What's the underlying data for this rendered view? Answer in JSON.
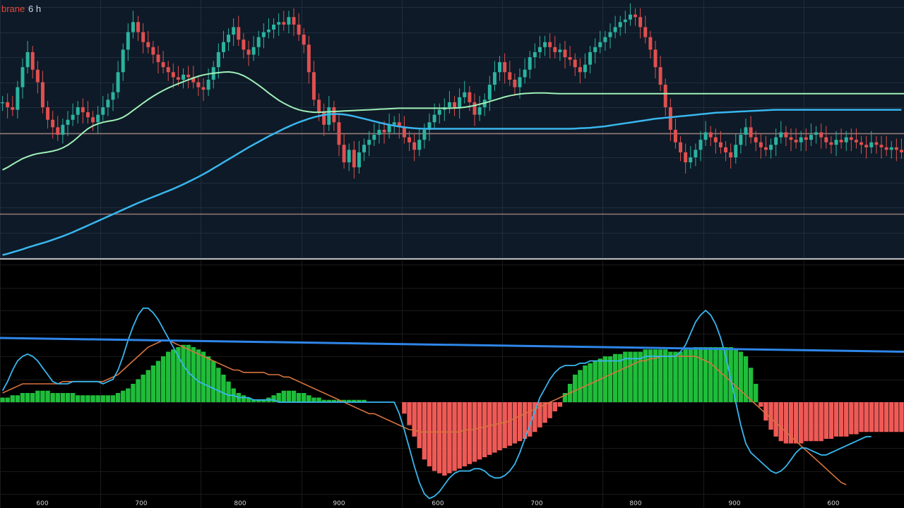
{
  "header": {
    "symbol": "brane",
    "interval": "6 h"
  },
  "colors": {
    "price_bg": "#0e1a27",
    "osc_bg": "#000000",
    "grid": "#1f2d3d",
    "up": "#2bb3a0",
    "down": "#e0504f",
    "ma_fast": "#9ef0b8",
    "ma_slow": "#39b6ee",
    "trend": "#2f86e8",
    "signal": "#d8743d",
    "hist_pos": "#1fbd3a",
    "hist_neg": "#ef5a56",
    "level": "#b08a82"
  },
  "x_ticks": [
    "600",
    "700",
    "800",
    "900",
    "600",
    "700",
    "800",
    "900",
    "600"
  ],
  "chart_data": [
    {
      "type": "candlestick",
      "panel": "price",
      "x_range": [
        0,
        180
      ],
      "ylim": [
        0,
        100
      ],
      "grid": true,
      "close": [
        62,
        60,
        59,
        68,
        76,
        82,
        75,
        70,
        60,
        55,
        52,
        49,
        53,
        55,
        57,
        60,
        58,
        56,
        54,
        57,
        60,
        63,
        66,
        74,
        83,
        90,
        94,
        90,
        86,
        84,
        81,
        78,
        76,
        74,
        72,
        71,
        73,
        72,
        70,
        68,
        67,
        71,
        76,
        82,
        86,
        89,
        92,
        87,
        83,
        81,
        84,
        88,
        90,
        91,
        93,
        94,
        93,
        96,
        93,
        89,
        85,
        74,
        63,
        58,
        53,
        60,
        54,
        45,
        38,
        43,
        36,
        42,
        45,
        47,
        49,
        51,
        50,
        53,
        54,
        52,
        48,
        46,
        43,
        47,
        51,
        54,
        57,
        59,
        60,
        62,
        60,
        64,
        66,
        62,
        57,
        60,
        63,
        69,
        74,
        78,
        74,
        71,
        68,
        72,
        75,
        80,
        82,
        84,
        86,
        84,
        82,
        83,
        80,
        79,
        76,
        74,
        77,
        82,
        84,
        86,
        88,
        90,
        92,
        94,
        95,
        97,
        96,
        92,
        88,
        83,
        76,
        69,
        60,
        51,
        46,
        42,
        38,
        40,
        43,
        47,
        50,
        48,
        46,
        44,
        42,
        40,
        45,
        49,
        52,
        48,
        46,
        44,
        43,
        45,
        48,
        50,
        48,
        47,
        46,
        48,
        47,
        49,
        50,
        48,
        46,
        45,
        47,
        46,
        48,
        47,
        46,
        45,
        44,
        46,
        45,
        44,
        43,
        44,
        43,
        42
      ],
      "ma_fast": [
        35,
        36,
        37.2,
        38.4,
        39.5,
        40.3,
        41,
        41.5,
        41.8,
        42.1,
        42.5,
        43,
        43.8,
        44.9,
        46.3,
        48,
        49.8,
        51.4,
        52.6,
        53.4,
        54,
        54.4,
        54.7,
        55.2,
        56,
        57.2,
        58.7,
        60.2,
        61.7,
        63.1,
        64.4,
        65.6,
        66.7,
        67.7,
        68.6,
        69.4,
        70.2,
        71,
        71.7,
        72.4,
        72.9,
        73.3,
        73.6,
        73.8,
        74,
        74.1,
        73.9,
        73.4,
        72.6,
        71.5,
        70.2,
        68.8,
        67.3,
        65.7,
        64.2,
        62.8,
        61.6,
        60.6,
        59.7,
        59,
        58.5,
        58.2,
        58,
        58,
        58.1,
        58.2,
        58.3,
        58.4,
        58.5,
        58.6,
        58.7,
        58.8,
        58.9,
        59,
        59.1,
        59.2,
        59.3,
        59.4,
        59.5,
        59.6,
        59.6,
        59.6,
        59.6,
        59.6,
        59.6,
        59.6,
        59.6,
        59.6,
        59.6,
        59.6,
        59.7,
        59.8,
        60,
        60.3,
        60.7,
        61.2,
        61.7,
        62.3,
        62.9,
        63.5,
        64.1,
        64.6,
        65,
        65.3,
        65.5,
        65.6,
        65.7,
        65.7,
        65.7,
        65.6,
        65.5,
        65.4,
        65.4,
        65.4,
        65.4,
        65.4,
        65.4,
        65.4,
        65.4,
        65.4,
        65.4,
        65.4,
        65.4,
        65.4,
        65.4,
        65.4,
        65.4,
        65.4,
        65.4,
        65.4,
        65.4,
        65.4,
        65.4,
        65.4,
        65.4,
        65.4,
        65.4,
        65.4,
        65.4,
        65.4,
        65.4,
        65.4,
        65.4,
        65.4,
        65.4,
        65.4,
        65.4,
        65.4,
        65.4,
        65.4,
        65.4,
        65.4,
        65.4,
        65.4,
        65.4,
        65.4,
        65.4,
        65.4,
        65.4,
        65.4,
        65.4,
        65.4,
        65.4,
        65.4,
        65.4,
        65.4,
        65.4,
        65.4,
        65.4,
        65.4,
        65.4,
        65.4,
        65.4,
        65.4,
        65.4,
        65.4,
        65.4,
        65.4,
        65.4,
        65.4,
        65.4,
        65.4
      ],
      "ma_slow": [
        1,
        1.5,
        2.1,
        2.7,
        3.3,
        4,
        4.6,
        5.2,
        5.8,
        6.4,
        7.1,
        7.8,
        8.5,
        9.3,
        10.1,
        11,
        11.9,
        12.8,
        13.7,
        14.6,
        15.5,
        16.4,
        17.3,
        18.2,
        19.1,
        20,
        20.9,
        21.8,
        22.6,
        23.4,
        24.2,
        25,
        25.8,
        26.6,
        27.4,
        28.3,
        29.2,
        30.2,
        31.2,
        32.2,
        33.3,
        34.4,
        35.6,
        36.8,
        38,
        39.2,
        40.4,
        41.6,
        42.8,
        44,
        45.1,
        46.2,
        47.3,
        48.4,
        49.4,
        50.4,
        51.4,
        52.3,
        53.2,
        54,
        54.7,
        55.4,
        56,
        56.5,
        56.9,
        57.2,
        57.3,
        57.3,
        57.1,
        56.8,
        56.4,
        55.9,
        55.4,
        54.9,
        54.4,
        53.9,
        53.4,
        53,
        52.6,
        52.3,
        52,
        51.8,
        51.6,
        51.5,
        51.4,
        51.4,
        51.4,
        51.4,
        51.4,
        51.4,
        51.4,
        51.4,
        51.4,
        51.4,
        51.4,
        51.4,
        51.4,
        51.4,
        51.4,
        51.4,
        51.4,
        51.4,
        51.4,
        51.4,
        51.4,
        51.4,
        51.4,
        51.4,
        51.4,
        51.4,
        51.4,
        51.4,
        51.4,
        51.4,
        51.5,
        51.6,
        51.7,
        51.8,
        52,
        52.2,
        52.4,
        52.7,
        53,
        53.3,
        53.6,
        53.9,
        54.2,
        54.5,
        54.8,
        55.1,
        55.4,
        55.6,
        55.8,
        56,
        56.2,
        56.4,
        56.6,
        56.8,
        57,
        57.2,
        57.4,
        57.6,
        57.8,
        57.9,
        58,
        58.1,
        58.2,
        58.3,
        58.4,
        58.5,
        58.6,
        58.7,
        58.8,
        58.9,
        59,
        59,
        59,
        59,
        59,
        59,
        59,
        59,
        59,
        59,
        59,
        59,
        59,
        59,
        59,
        59,
        59,
        59,
        59,
        59,
        59,
        59,
        59,
        59,
        59,
        59
      ],
      "levels": [
        49.5,
        17.5
      ]
    },
    {
      "type": "macd",
      "panel": "oscillator",
      "x_range": [
        0,
        180
      ],
      "ylim": [
        -40,
        60
      ],
      "grid": true,
      "histogram": [
        2,
        2,
        3,
        3,
        4,
        4,
        4,
        5,
        5,
        5,
        4,
        4,
        4,
        4,
        4,
        3,
        3,
        3,
        3,
        3,
        3,
        3,
        3,
        4,
        5,
        6,
        8,
        10,
        12,
        14,
        16,
        18,
        20,
        22,
        23,
        24,
        25,
        25,
        24,
        23,
        22,
        20,
        18,
        15,
        12,
        9,
        6,
        4,
        3,
        2,
        1,
        1,
        1,
        2,
        3,
        4,
        5,
        5,
        5,
        4,
        4,
        3,
        2,
        2,
        1,
        1,
        1,
        1,
        1,
        1,
        1,
        1,
        1,
        0,
        0,
        0,
        0,
        0,
        0,
        0,
        -5,
        -10,
        -15,
        -20,
        -25,
        -28,
        -30,
        -31,
        -32,
        -31,
        -30,
        -29,
        -28,
        -27,
        -26,
        -25,
        -24,
        -23,
        -22,
        -21,
        -20,
        -19,
        -18,
        -17,
        -16,
        -15,
        -13,
        -11,
        -9,
        -7,
        -4,
        -2,
        4,
        8,
        12,
        14,
        16,
        17,
        18,
        19,
        20,
        20,
        21,
        21,
        22,
        22,
        22,
        22,
        23,
        23,
        23,
        23,
        23,
        22,
        22,
        22,
        23,
        23,
        24,
        24,
        24,
        24,
        24,
        24,
        24,
        24,
        23,
        22,
        20,
        15,
        8,
        -2,
        -8,
        -12,
        -15,
        -17,
        -18,
        -18,
        -18,
        -18,
        -17,
        -17,
        -17,
        -17,
        -16,
        -16,
        -15,
        -15,
        -15,
        -14,
        -14,
        -13,
        -13,
        -13,
        -13,
        -13,
        -13,
        -13,
        -13,
        -13,
        -13,
        -13
      ],
      "macd": [
        5,
        9,
        14,
        18,
        20,
        21,
        20,
        18,
        15,
        12,
        9,
        8,
        8,
        8,
        9,
        9,
        9,
        9,
        9,
        9,
        8,
        9,
        10,
        14,
        20,
        27,
        33,
        38,
        41,
        41,
        39,
        36,
        32,
        28,
        24,
        20,
        16,
        13,
        11,
        9,
        8,
        7,
        6,
        5,
        4,
        3,
        3,
        2,
        2,
        2,
        1,
        1,
        1,
        1,
        1,
        0,
        0,
        0,
        0,
        0,
        0,
        0,
        0,
        0,
        0,
        0,
        0,
        0,
        0,
        0,
        0,
        0,
        0,
        0,
        0,
        0,
        0,
        0,
        0,
        -5,
        -12,
        -20,
        -28,
        -35,
        -40,
        -42,
        -41,
        -39,
        -36,
        -33,
        -31,
        -30,
        -30,
        -30,
        -29,
        -29,
        -30,
        -32,
        -33,
        -33,
        -32,
        -30,
        -27,
        -22,
        -16,
        -10,
        -4,
        2,
        6,
        10,
        13,
        15,
        16,
        16,
        16,
        17,
        17,
        18,
        18,
        18,
        18,
        18,
        18,
        18,
        19,
        19,
        19,
        19,
        20,
        20,
        20,
        20,
        20,
        20,
        20,
        22,
        25,
        30,
        35,
        38,
        40,
        38,
        34,
        28,
        20,
        10,
        0,
        -10,
        -18,
        -22,
        -24,
        -26,
        -28,
        -30,
        -31,
        -30,
        -28,
        -25,
        -22,
        -20,
        -20,
        -21,
        -22,
        -23,
        -23,
        -22,
        -21,
        -20,
        -19,
        -18,
        -17,
        -16,
        -15,
        -15
      ],
      "signal": [
        4,
        5,
        6,
        7,
        8,
        8,
        8,
        8,
        8,
        8,
        8,
        8,
        9,
        9,
        9,
        9,
        9,
        9,
        9,
        9,
        9,
        10,
        11,
        12,
        14,
        16,
        18,
        20,
        22,
        24,
        25,
        26,
        27,
        27,
        26,
        25,
        24,
        23,
        22,
        21,
        20,
        19,
        18,
        17,
        16,
        15,
        14,
        14,
        13,
        13,
        13,
        13,
        13,
        12,
        12,
        12,
        11,
        11,
        10,
        9,
        8,
        7,
        6,
        5,
        4,
        3,
        2,
        1,
        0,
        -1,
        -2,
        -3,
        -4,
        -5,
        -5,
        -6,
        -7,
        -8,
        -9,
        -10,
        -11,
        -12,
        -12,
        -13,
        -13,
        -13,
        -13,
        -13,
        -13,
        -13,
        -13,
        -13,
        -12,
        -12,
        -12,
        -11,
        -11,
        -10,
        -10,
        -9,
        -9,
        -8,
        -7,
        -6,
        -5,
        -4,
        -3,
        -2,
        -1,
        0,
        1,
        2,
        3,
        4,
        5,
        6,
        7,
        8,
        9,
        10,
        11,
        12,
        13,
        14,
        15,
        16,
        17,
        18,
        18,
        19,
        19,
        20,
        20,
        20,
        20,
        20,
        20,
        20,
        20,
        19,
        18,
        17,
        15,
        13,
        11,
        9,
        7,
        5,
        3,
        1,
        -1,
        -3,
        -5,
        -7,
        -9,
        -11,
        -13,
        -15,
        -17,
        -19,
        -21,
        -23,
        -25,
        -27,
        -29,
        -31,
        -33,
        -35,
        -36
      ],
      "trend_line": {
        "x": [
          0,
          180
        ],
        "y": [
          28,
          22
        ]
      }
    }
  ]
}
